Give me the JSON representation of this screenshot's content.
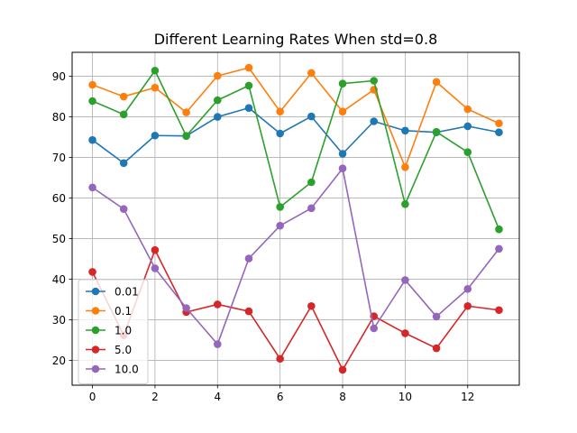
{
  "chart_data": {
    "type": "line",
    "title": "Different Learning Rates When std=0.8",
    "xlabel": "",
    "ylabel": "",
    "xlim": [
      -0.65,
      13.65
    ],
    "ylim": [
      13.9,
      95.9
    ],
    "xticks": [
      0,
      2,
      4,
      6,
      8,
      10,
      12
    ],
    "yticks": [
      20,
      30,
      40,
      50,
      60,
      70,
      80,
      90
    ],
    "grid": true,
    "legend_position": "lower-left",
    "x": [
      0,
      1,
      2,
      3,
      4,
      5,
      6,
      7,
      8,
      9,
      10,
      11,
      12,
      13
    ],
    "series": [
      {
        "name": "0.01",
        "color": "#1f77b4",
        "values": [
          74.3,
          68.6,
          75.4,
          75.3,
          80.0,
          82.2,
          75.9,
          80.1,
          70.9,
          78.9,
          76.6,
          76.2,
          77.7,
          76.2
        ]
      },
      {
        "name": "0.1",
        "color": "#ff7f0e",
        "values": [
          87.9,
          85.0,
          87.2,
          81.1,
          90.1,
          92.1,
          81.3,
          90.8,
          81.3,
          86.7,
          67.6,
          88.6,
          81.9,
          78.4
        ]
      },
      {
        "name": "1.0",
        "color": "#2ca02c",
        "values": [
          83.9,
          80.6,
          91.4,
          75.3,
          84.1,
          87.7,
          57.8,
          63.9,
          88.2,
          88.9,
          58.5,
          76.3,
          71.3,
          52.3
        ]
      },
      {
        "name": "5.0",
        "color": "#d62728",
        "values": [
          41.8,
          26.2,
          47.2,
          31.9,
          33.8,
          32.1,
          20.4,
          33.4,
          17.7,
          30.9,
          26.7,
          23.0,
          33.4,
          32.4
        ]
      },
      {
        "name": "10.0",
        "color": "#9467bd",
        "values": [
          62.6,
          57.3,
          42.7,
          32.9,
          24.0,
          45.1,
          53.2,
          57.5,
          67.3,
          27.9,
          39.8,
          30.8,
          37.6,
          47.5
        ]
      }
    ]
  }
}
